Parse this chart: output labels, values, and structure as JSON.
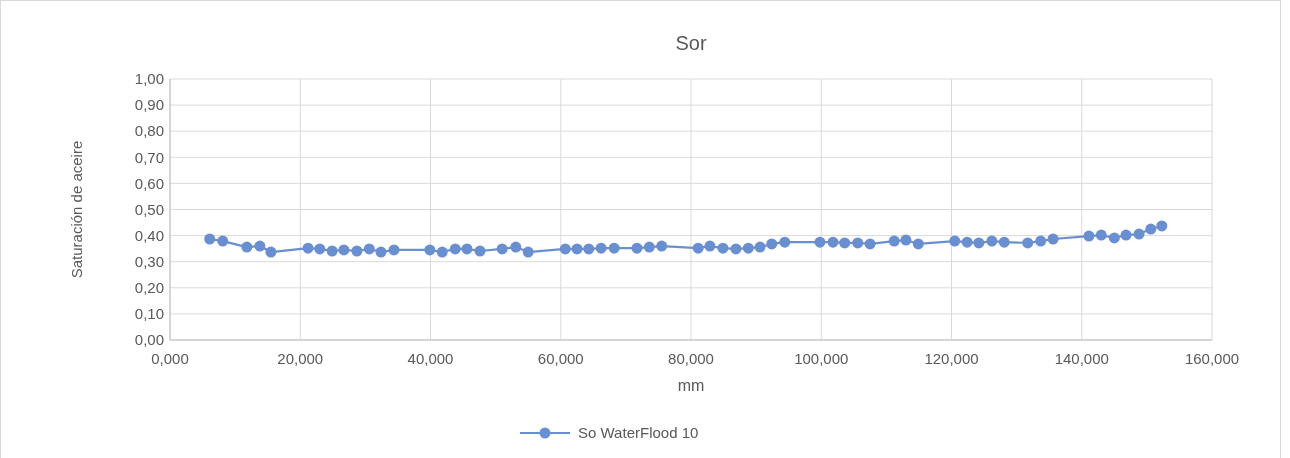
{
  "chart_data": {
    "type": "line",
    "title": "Sor",
    "xlabel": "mm",
    "ylabel": "Saturación de aceire",
    "xlim": [
      0,
      160
    ],
    "xticks": [
      {
        "value": 0,
        "label": "0,000"
      },
      {
        "value": 20,
        "label": "20,000"
      },
      {
        "value": 40,
        "label": "40,000"
      },
      {
        "value": 60,
        "label": "60,000"
      },
      {
        "value": 80,
        "label": "80,000"
      },
      {
        "value": 100,
        "label": "100,000"
      },
      {
        "value": 120,
        "label": "120,000"
      },
      {
        "value": 140,
        "label": "140,000"
      },
      {
        "value": 160,
        "label": "160,000"
      }
    ],
    "ylim": [
      0,
      1
    ],
    "yticks": [
      {
        "value": 0,
        "label": "0,00"
      },
      {
        "value": 0.1,
        "label": "0,10"
      },
      {
        "value": 0.2,
        "label": "0,20"
      },
      {
        "value": 0.3,
        "label": "0,30"
      },
      {
        "value": 0.4,
        "label": "0,40"
      },
      {
        "value": 0.5,
        "label": "0,50"
      },
      {
        "value": 0.6,
        "label": "0,60"
      },
      {
        "value": 0.7,
        "label": "0,70"
      },
      {
        "value": 0.8,
        "label": "0,80"
      },
      {
        "value": 0.9,
        "label": "0,90"
      },
      {
        "value": 1,
        "label": "1,00"
      }
    ],
    "grid": true,
    "legend": "bottom",
    "marker": "circle",
    "line_style": "solid",
    "x": [
      6.1,
      8.1,
      11.8,
      13.8,
      15.5,
      21.2,
      23.0,
      24.9,
      26.7,
      28.7,
      30.6,
      32.4,
      34.4,
      39.9,
      41.8,
      43.8,
      45.6,
      47.6,
      51.0,
      53.1,
      55.0,
      60.7,
      62.5,
      64.3,
      66.2,
      68.2,
      71.7,
      73.6,
      75.5,
      81.1,
      82.9,
      84.9,
      86.9,
      88.8,
      90.6,
      92.4,
      94.4,
      99.8,
      101.8,
      103.6,
      105.6,
      107.5,
      111.2,
      113.0,
      114.9,
      120.5,
      122.4,
      124.2,
      126.2,
      128.1,
      131.7,
      133.7,
      135.6,
      141.1,
      143.0,
      145.0,
      146.8,
      148.8,
      150.6,
      152.3
    ],
    "series": [
      {
        "name": "So WaterFlood 10",
        "color": "#6a8fd0",
        "values": [
          0.387,
          0.379,
          0.356,
          0.36,
          0.337,
          0.352,
          0.349,
          0.341,
          0.345,
          0.341,
          0.349,
          0.337,
          0.345,
          0.345,
          0.337,
          0.349,
          0.349,
          0.341,
          0.349,
          0.356,
          0.337,
          0.349,
          0.349,
          0.349,
          0.352,
          0.352,
          0.352,
          0.356,
          0.36,
          0.352,
          0.36,
          0.352,
          0.349,
          0.352,
          0.356,
          0.368,
          0.375,
          0.375,
          0.375,
          0.372,
          0.372,
          0.368,
          0.379,
          0.383,
          0.368,
          0.379,
          0.375,
          0.372,
          0.379,
          0.375,
          0.372,
          0.379,
          0.387,
          0.398,
          0.402,
          0.391,
          0.402,
          0.406,
          0.425,
          0.437
        ]
      }
    ]
  }
}
